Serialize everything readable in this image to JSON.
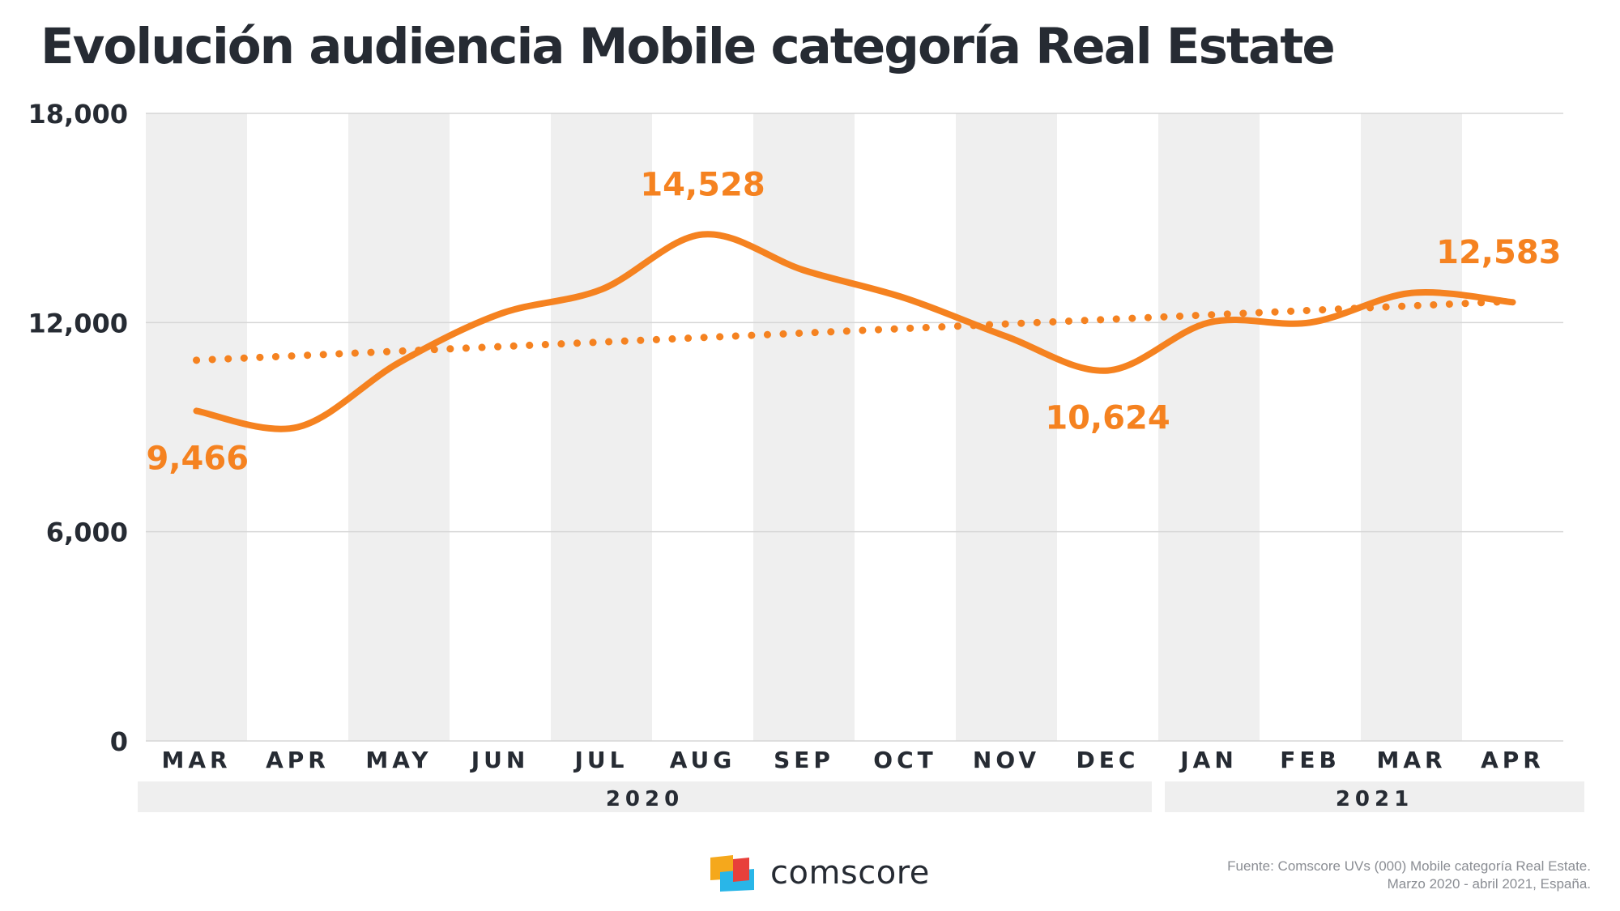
{
  "chart_data": {
    "type": "line",
    "title": "Evolución audiencia Mobile categoría Real Estate",
    "categories": [
      "MAR",
      "APR",
      "MAY",
      "JUN",
      "JUL",
      "AUG",
      "SEP",
      "OCT",
      "NOV",
      "DEC",
      "JAN",
      "FEB",
      "MAR",
      "APR"
    ],
    "category_groups": [
      {
        "label": "2020",
        "from": 0,
        "to": 9
      },
      {
        "label": "2021",
        "from": 10,
        "to": 13
      }
    ],
    "series": [
      {
        "values": [
          9466,
          9000,
          10850,
          12250,
          12950,
          14528,
          13500,
          12700,
          11600,
          10624,
          12000,
          12000,
          12850,
          12583
        ],
        "color": "#f58220",
        "style": "solid"
      },
      {
        "values": [
          10920,
          11050,
          11180,
          11310,
          11440,
          11570,
          11700,
          11830,
          11960,
          12090,
          12220,
          12350,
          12480,
          12610
        ],
        "color": "#f58220",
        "style": "dotted",
        "kind": "trendline"
      }
    ],
    "data_labels": [
      {
        "index": 0,
        "text": "9,466",
        "position": "below"
      },
      {
        "index": 5,
        "text": "14,528",
        "position": "above"
      },
      {
        "index": 9,
        "text": "10,624",
        "position": "below"
      },
      {
        "index": 13,
        "text": "12,583",
        "position": "above"
      }
    ],
    "ylim": [
      0,
      18000
    ],
    "yticks": [
      0,
      6000,
      12000,
      18000
    ],
    "ytick_labels": [
      "0",
      "6,000",
      "12,000",
      "18,000"
    ],
    "grid": "horizontal",
    "column_bands": "alternating",
    "band_color": "#efefef",
    "xlabel": "",
    "ylabel": ""
  },
  "footer": {
    "brand": "comscore",
    "source_lines": [
      "Fuente: Comscore UVs (000) Mobile categoría Real Estate.",
      "Marzo 2020 - abril 2021, España."
    ]
  },
  "colors": {
    "accent": "#f58220",
    "text": "#262b33",
    "band": "#efefef",
    "logo_blue": "#29b6e8",
    "logo_red": "#e8403a",
    "logo_yellow": "#f5a81c"
  }
}
